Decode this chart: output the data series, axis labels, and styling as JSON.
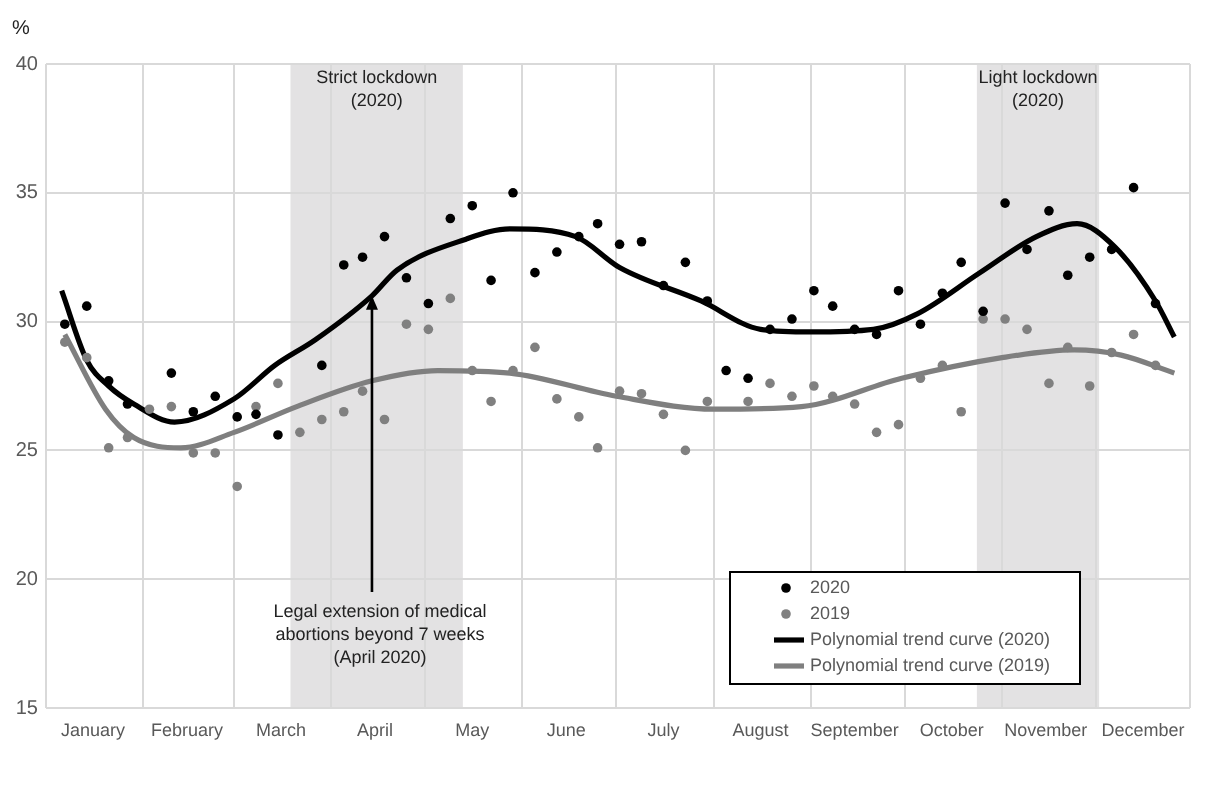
{
  "chart_data": {
    "type": "scatter",
    "ylabel": "%",
    "x": [
      "--01-07",
      "--01-14",
      "--01-21",
      "--01-27",
      "--02-03",
      "--02-10",
      "--02-17",
      "--02-24",
      "--03-02",
      "--03-08",
      "--03-15",
      "--03-22",
      "--03-29",
      "--04-05",
      "--04-11",
      "--04-18",
      "--04-25",
      "--05-02",
      "--05-09",
      "--05-16",
      "--05-22",
      "--05-29",
      "--06-05",
      "--06-12",
      "--06-19",
      "--06-25",
      "--07-02",
      "--07-09",
      "--07-16",
      "--07-23",
      "--07-30",
      "--08-05",
      "--08-12",
      "--08-19",
      "--08-26",
      "--09-02",
      "--09-08",
      "--09-15",
      "--09-22",
      "--09-29",
      "--10-06",
      "--10-13",
      "--10-19",
      "--10-26",
      "--11-02",
      "--11-09",
      "--11-16",
      "--11-22",
      "--11-29",
      "--12-06",
      "--12-13",
      "--12-20"
    ],
    "series": [
      {
        "name": "2020",
        "marker": "circle",
        "color": "#000000",
        "values": [
          29.9,
          30.6,
          27.7,
          26.8,
          null,
          28.0,
          26.5,
          27.1,
          26.3,
          26.4,
          25.6,
          null,
          28.3,
          32.2,
          32.5,
          33.3,
          31.7,
          30.7,
          34.0,
          34.5,
          31.6,
          35.0,
          31.9,
          32.7,
          33.3,
          33.8,
          33.0,
          33.1,
          31.4,
          32.3,
          30.8,
          28.1,
          27.8,
          29.7,
          30.1,
          31.2,
          30.6,
          29.7,
          29.5,
          31.2,
          29.9,
          31.1,
          32.3,
          30.4,
          34.6,
          32.8,
          34.3,
          31.8,
          32.5,
          32.8,
          35.2,
          30.7
        ]
      },
      {
        "name": "2019",
        "marker": "circle",
        "color": "#808080",
        "values": [
          29.2,
          28.6,
          25.1,
          25.5,
          26.6,
          26.7,
          24.9,
          24.9,
          23.6,
          26.7,
          27.6,
          25.7,
          26.2,
          26.5,
          27.3,
          26.2,
          29.9,
          29.7,
          30.9,
          28.1,
          26.9,
          28.1,
          29.0,
          27.0,
          26.3,
          25.1,
          27.3,
          27.2,
          26.4,
          25.0,
          26.9,
          null,
          26.9,
          27.6,
          27.1,
          27.5,
          27.1,
          26.8,
          25.7,
          26.0,
          27.8,
          28.3,
          26.5,
          30.1,
          30.1,
          29.7,
          27.6,
          29.0,
          27.5,
          28.8,
          29.5,
          28.3
        ]
      },
      {
        "name": "Polynomial trend curve (2020)",
        "type": "line",
        "marker": "none",
        "color": "#000000",
        "x": [
          "--01-06",
          "--01-14",
          "--01-21",
          "--01-29",
          "--02-11",
          "--03-01",
          "--03-14",
          "--03-27",
          "--04-14",
          "--04-22",
          "--05-14",
          "--05-28",
          "--06-18",
          "--07-02",
          "--07-28",
          "--08-16",
          "--09-01",
          "--09-21",
          "--10-05",
          "--10-25",
          "--11-12",
          "--11-25",
          "--12-07",
          "--12-20",
          "--12-26"
        ],
        "values": [
          31.2,
          28.5,
          27.5,
          26.8,
          26.1,
          27.0,
          28.3,
          29.3,
          31.0,
          32.0,
          33.2,
          33.6,
          33.3,
          32.1,
          30.8,
          29.7,
          29.6,
          29.7,
          30.3,
          31.9,
          33.3,
          33.8,
          32.9,
          30.8,
          29.4
        ]
      },
      {
        "name": "Polynomial trend curve (2019)",
        "type": "line",
        "marker": "none",
        "color": "#7f7f7f",
        "x": [
          "--01-07",
          "--01-20",
          "--01-29",
          "--02-13",
          "--03-01",
          "--03-21",
          "--04-14",
          "--05-05",
          "--05-28",
          "--07-01",
          "--08-01",
          "--08-29",
          "--09-30",
          "--11-01",
          "--11-24",
          "--12-09",
          "--12-26"
        ],
        "values": [
          29.5,
          26.6,
          25.5,
          25.1,
          25.7,
          26.7,
          27.7,
          28.1,
          28.0,
          27.1,
          26.6,
          26.7,
          27.8,
          28.6,
          28.9,
          28.7,
          28.0
        ]
      }
    ],
    "xlim": [
      "--01-01",
      "--12-31"
    ],
    "xticks": [
      {
        "value": "--01-01",
        "label": null
      },
      {
        "value": "--01-16",
        "label": "January"
      },
      {
        "value": "--02-01",
        "label": null
      },
      {
        "value": "--02-15",
        "label": "February"
      },
      {
        "value": "--03-01",
        "label": null
      },
      {
        "value": "--03-16",
        "label": "March"
      },
      {
        "value": "--04-01",
        "label": null
      },
      {
        "value": "--04-15",
        "label": "April"
      },
      {
        "value": "--05-01",
        "label": null
      },
      {
        "value": "--05-16",
        "label": "May"
      },
      {
        "value": "--06-01",
        "label": null
      },
      {
        "value": "--06-15",
        "label": "June"
      },
      {
        "value": "--07-01",
        "label": null
      },
      {
        "value": "--07-16",
        "label": "July"
      },
      {
        "value": "--08-01",
        "label": null
      },
      {
        "value": "--08-16",
        "label": "August"
      },
      {
        "value": "--09-01",
        "label": null
      },
      {
        "value": "--09-15",
        "label": "September"
      },
      {
        "value": "--10-01",
        "label": null
      },
      {
        "value": "--10-16",
        "label": "October"
      },
      {
        "value": "--11-01",
        "label": null
      },
      {
        "value": "--11-15",
        "label": "November"
      },
      {
        "value": "--12-01",
        "label": null
      },
      {
        "value": "--12-16",
        "label": "December"
      },
      {
        "value": "--12-31",
        "label": null
      }
    ],
    "ylim": [
      15,
      40
    ],
    "yticks": [
      15,
      20,
      25,
      30,
      35,
      40
    ],
    "grid": true,
    "legend": "bottom right",
    "bands": [
      {
        "axis": "x",
        "from": "--03-19",
        "to": "--05-13",
        "label": "Strict lockdown\n(2020)",
        "color": "#e3e2e3"
      },
      {
        "axis": "x",
        "from": "--10-24",
        "to": "--12-02",
        "label": "Light lockdown\n(2020)",
        "color": "#e3e2e3"
      }
    ],
    "annotations": [
      {
        "text": "Legal extension of medical\nabortions beyond 7 weeks\n(April 2020)",
        "x": "--04-14",
        "y": 31.0
      }
    ]
  }
}
